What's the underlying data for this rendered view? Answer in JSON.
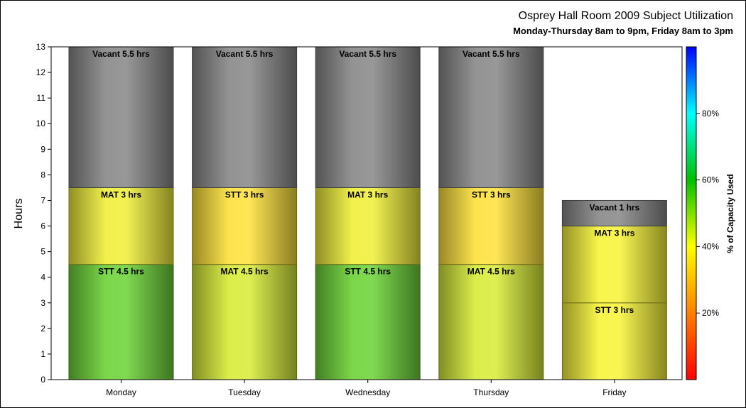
{
  "title": "Osprey Hall Room 2009 Subject Utilization",
  "subtitle": "Monday-Thursday 8am to 9pm, Friday 8am to 3pm",
  "chart_data": {
    "type": "bar",
    "stacked": true,
    "title": "Osprey Hall Room 2009 Subject Utilization",
    "subtitle": "Monday-Thursday 8am to 9pm, Friday 8am to 3pm",
    "xlabel": "",
    "ylabel": "Hours",
    "ylim": [
      0,
      13
    ],
    "yticks": [
      0,
      1,
      2,
      3,
      4,
      5,
      6,
      7,
      8,
      9,
      10,
      11,
      12,
      13
    ],
    "grid": false,
    "categories": [
      "Monday",
      "Tuesday",
      "Wednesday",
      "Thursday",
      "Friday"
    ],
    "bars": [
      {
        "category": "Monday",
        "segments": [
          {
            "label": "STT 4.5 hrs",
            "value": 4.5,
            "color": "#6fd43a"
          },
          {
            "label": "MAT 3 hrs",
            "value": 3,
            "color": "#f0ef3c"
          },
          {
            "label": "Vacant 5.5 hrs",
            "value": 5.5,
            "color": "#8a8a8a"
          }
        ]
      },
      {
        "category": "Tuesday",
        "segments": [
          {
            "label": "MAT 4.5 hrs",
            "value": 4.5,
            "color": "#d7ec3a"
          },
          {
            "label": "STT 3 hrs",
            "value": 3,
            "color": "#fde23e"
          },
          {
            "label": "Vacant 5.5 hrs",
            "value": 5.5,
            "color": "#8a8a8a"
          }
        ]
      },
      {
        "category": "Wednesday",
        "segments": [
          {
            "label": "STT 4.5 hrs",
            "value": 4.5,
            "color": "#6fd43a"
          },
          {
            "label": "MAT 3 hrs",
            "value": 3,
            "color": "#f0ef3c"
          },
          {
            "label": "Vacant 5.5 hrs",
            "value": 5.5,
            "color": "#8a8a8a"
          }
        ]
      },
      {
        "category": "Thursday",
        "segments": [
          {
            "label": "MAT 4.5 hrs",
            "value": 4.5,
            "color": "#d7ec3a"
          },
          {
            "label": "STT 3 hrs",
            "value": 3,
            "color": "#fde23e"
          },
          {
            "label": "Vacant 5.5 hrs",
            "value": 5.5,
            "color": "#8a8a8a"
          }
        ]
      },
      {
        "category": "Friday",
        "segments": [
          {
            "label": "STT 3 hrs",
            "value": 3,
            "color": "#f7f43c"
          },
          {
            "label": "MAT 3 hrs",
            "value": 3,
            "color": "#f7f43c"
          },
          {
            "label": "Vacant 1 hrs",
            "value": 1,
            "color": "#8a8a8a"
          }
        ]
      }
    ],
    "colorbar": {
      "label": "% of Capacity Used",
      "range": [
        0,
        100
      ],
      "ticks": [
        20,
        40,
        60,
        80
      ],
      "tick_labels": [
        "20%",
        "40%",
        "60%",
        "80%"
      ],
      "colors": [
        "#ff0000",
        "#ff8000",
        "#ffff00",
        "#00c000",
        "#00ffff",
        "#0000ff"
      ]
    }
  }
}
